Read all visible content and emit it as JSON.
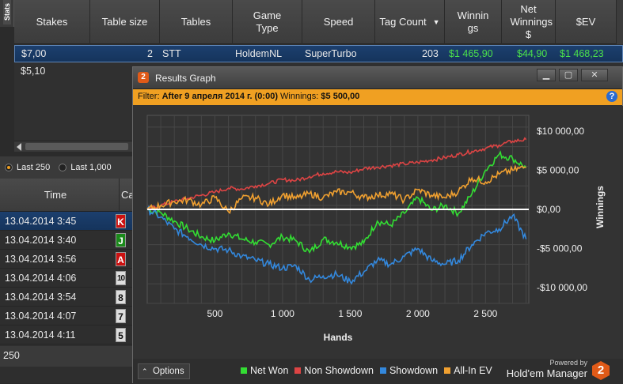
{
  "stats_tab": "Stats",
  "columns": [
    "Stakes",
    "Table size",
    "Tables",
    "Game Type",
    "Speed",
    "Tag Count",
    "Winnings",
    "Net Winnings $",
    "$EV"
  ],
  "rows": [
    {
      "stakes": "$7,00",
      "table_size": "2",
      "tables": "STT",
      "game_type": "HoldemNL",
      "speed": "SuperTurbo",
      "tag_count": "203",
      "winnings": "$1 465,90",
      "net_winnings": "$44,90",
      "ev": "$1 468,23"
    },
    {
      "stakes": "$5,10"
    }
  ],
  "hands_panel": {
    "radios": [
      "Last 250",
      "Last 1,000"
    ],
    "time_header": "Time",
    "card_header": "Ca",
    "hands": [
      {
        "time": "13.04.2014 3:45",
        "card": "K",
        "suit": "red"
      },
      {
        "time": "13.04.2014 3:40",
        "card": "J",
        "suit": "green"
      },
      {
        "time": "13.04.2014 3:56",
        "card": "A",
        "suit": "red"
      },
      {
        "time": "13.04.2014 4:06",
        "card": "10",
        "suit": "grey"
      },
      {
        "time": "13.04.2014 3:54",
        "card": "8",
        "suit": "grey"
      },
      {
        "time": "13.04.2014 4:07",
        "card": "7",
        "suit": "grey"
      },
      {
        "time": "13.04.2014 4:11",
        "card": "5",
        "suit": "grey"
      }
    ],
    "count": "250"
  },
  "graph_window": {
    "title": "Results Graph",
    "filter_label": "Filter:",
    "filter_date": "After 9 апреля 2014 г. (0:00)",
    "filter_winnings_label": "Winnings:",
    "filter_winnings": "$5 500,00",
    "options_label": "Options",
    "powered_by": "Powered by",
    "brand": "Hold'em Manager",
    "brand_logo": "2"
  },
  "chart_data": {
    "type": "line",
    "xlabel": "Hands",
    "ylabel": "Winnings",
    "xlim": [
      0,
      2820
    ],
    "ylim": [
      -12000,
      12000
    ],
    "x_ticks": [
      500,
      1000,
      1500,
      2000,
      2500
    ],
    "x_tick_labels": [
      "500",
      "1 000",
      "1 500",
      "2 000",
      "2 500"
    ],
    "y_ticks": [
      10000,
      5000,
      0,
      -5000,
      -10000
    ],
    "y_tick_labels": [
      "$10 000,00",
      "$5 000,00",
      "$0,00",
      "-$5 000,00",
      "-$10 000,00"
    ],
    "grid": true,
    "legend_position": "bottom",
    "x": [
      0,
      100,
      200,
      300,
      400,
      500,
      600,
      700,
      800,
      900,
      1000,
      1100,
      1200,
      1300,
      1400,
      1500,
      1600,
      1700,
      1800,
      1900,
      2000,
      2100,
      2200,
      2300,
      2400,
      2500,
      2600,
      2700,
      2800
    ],
    "series": [
      {
        "name": "Net Won",
        "color": "#33dd33",
        "values": [
          0,
          -400,
          -1500,
          -2500,
          -3500,
          -4000,
          -3000,
          -3800,
          -4200,
          -4500,
          -3500,
          -4000,
          -5500,
          -3800,
          -4200,
          -4800,
          -4300,
          -1500,
          -2000,
          -500,
          1500,
          -100,
          500,
          -500,
          2000,
          5000,
          7000,
          6500,
          5300
        ]
      },
      {
        "name": "Non Showdown",
        "color": "#dd4444",
        "values": [
          0,
          500,
          1000,
          1400,
          1800,
          2200,
          2700,
          2600,
          3000,
          3300,
          3800,
          3700,
          4200,
          4600,
          4800,
          4700,
          5200,
          5400,
          5600,
          5800,
          6000,
          6300,
          6600,
          7000,
          7400,
          7800,
          8200,
          8700,
          8900
        ]
      },
      {
        "name": "Showdown",
        "color": "#3388dd",
        "values": [
          0,
          -1000,
          -2500,
          -3500,
          -4500,
          -5000,
          -5200,
          -6000,
          -6500,
          -7000,
          -7500,
          -7200,
          -9000,
          -8500,
          -8300,
          -9200,
          -8000,
          -6500,
          -7000,
          -6000,
          -5000,
          -6500,
          -7000,
          -6500,
          -4500,
          -3000,
          -2500,
          -800,
          -3800
        ]
      },
      {
        "name": "All-In EV",
        "color": "#f0a030",
        "values": [
          0,
          500,
          1000,
          1200,
          600,
          1500,
          -300,
          1400,
          1500,
          600,
          1900,
          1400,
          2000,
          1500,
          2200,
          2200,
          1500,
          1800,
          2000,
          1200,
          2500,
          1800,
          1500,
          2300,
          4000,
          3500,
          4500,
          5000,
          5400
        ]
      }
    ]
  }
}
